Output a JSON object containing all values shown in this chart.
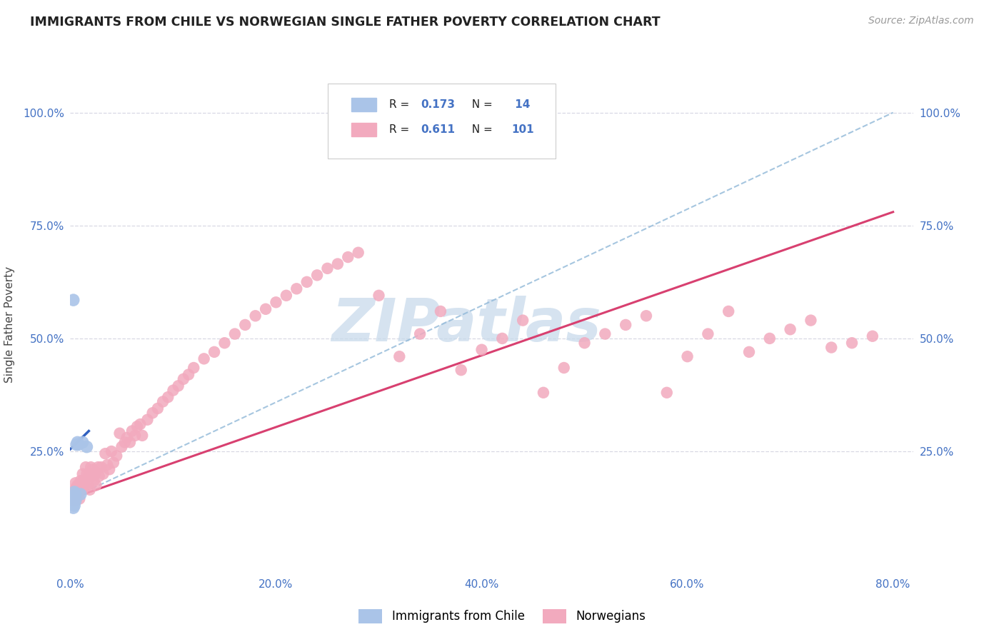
{
  "title": "IMMIGRANTS FROM CHILE VS NORWEGIAN SINGLE FATHER POVERTY CORRELATION CHART",
  "source": "Source: ZipAtlas.com",
  "ylabel": "Single Father Poverty",
  "xlim": [
    0.0,
    0.82
  ],
  "ylim": [
    -0.02,
    1.08
  ],
  "xtick_labels": [
    "0.0%",
    "20.0%",
    "40.0%",
    "60.0%",
    "80.0%"
  ],
  "xtick_vals": [
    0.0,
    0.2,
    0.4,
    0.6,
    0.8
  ],
  "ytick_labels": [
    "25.0%",
    "50.0%",
    "75.0%",
    "100.0%"
  ],
  "ytick_vals": [
    0.25,
    0.5,
    0.75,
    1.0
  ],
  "legend_labels": [
    "Immigrants from Chile",
    "Norwegians"
  ],
  "chile_color": "#aac4e8",
  "norway_color": "#f2aabe",
  "chile_trend_color": "#3060c0",
  "norway_trend_color": "#d84070",
  "norway_dashed_color": "#90b8d8",
  "chile_scatter": {
    "x": [
      0.003,
      0.003,
      0.003,
      0.004,
      0.004,
      0.004,
      0.005,
      0.005,
      0.006,
      0.007,
      0.008,
      0.01,
      0.012,
      0.016
    ],
    "y": [
      0.585,
      0.145,
      0.125,
      0.16,
      0.145,
      0.13,
      0.155,
      0.14,
      0.265,
      0.27,
      0.265,
      0.155,
      0.27,
      0.26
    ]
  },
  "norway_scatter": {
    "x": [
      0.003,
      0.004,
      0.004,
      0.005,
      0.005,
      0.006,
      0.006,
      0.007,
      0.007,
      0.008,
      0.009,
      0.009,
      0.01,
      0.01,
      0.011,
      0.012,
      0.012,
      0.013,
      0.014,
      0.015,
      0.016,
      0.017,
      0.018,
      0.019,
      0.02,
      0.021,
      0.022,
      0.023,
      0.024,
      0.025,
      0.027,
      0.028,
      0.03,
      0.032,
      0.034,
      0.036,
      0.038,
      0.04,
      0.042,
      0.045,
      0.048,
      0.05,
      0.053,
      0.055,
      0.058,
      0.06,
      0.063,
      0.065,
      0.068,
      0.07,
      0.075,
      0.08,
      0.085,
      0.09,
      0.095,
      0.1,
      0.105,
      0.11,
      0.115,
      0.12,
      0.13,
      0.14,
      0.15,
      0.16,
      0.17,
      0.18,
      0.19,
      0.2,
      0.21,
      0.22,
      0.23,
      0.24,
      0.25,
      0.26,
      0.27,
      0.28,
      0.3,
      0.32,
      0.34,
      0.36,
      0.38,
      0.4,
      0.42,
      0.44,
      0.46,
      0.48,
      0.5,
      0.52,
      0.54,
      0.56,
      0.58,
      0.6,
      0.62,
      0.64,
      0.66,
      0.68,
      0.7,
      0.72,
      0.74,
      0.76,
      0.78
    ],
    "y": [
      0.155,
      0.14,
      0.165,
      0.155,
      0.18,
      0.145,
      0.17,
      0.155,
      0.175,
      0.16,
      0.175,
      0.145,
      0.165,
      0.185,
      0.175,
      0.2,
      0.165,
      0.185,
      0.175,
      0.215,
      0.2,
      0.175,
      0.195,
      0.165,
      0.215,
      0.195,
      0.21,
      0.185,
      0.2,
      0.175,
      0.215,
      0.195,
      0.215,
      0.2,
      0.245,
      0.22,
      0.21,
      0.25,
      0.225,
      0.24,
      0.29,
      0.26,
      0.27,
      0.28,
      0.27,
      0.295,
      0.285,
      0.305,
      0.31,
      0.285,
      0.32,
      0.335,
      0.345,
      0.36,
      0.37,
      0.385,
      0.395,
      0.41,
      0.42,
      0.435,
      0.455,
      0.47,
      0.49,
      0.51,
      0.53,
      0.55,
      0.565,
      0.58,
      0.595,
      0.61,
      0.625,
      0.64,
      0.655,
      0.665,
      0.68,
      0.69,
      0.595,
      0.46,
      0.51,
      0.56,
      0.43,
      0.475,
      0.5,
      0.54,
      0.38,
      0.435,
      0.49,
      0.51,
      0.53,
      0.55,
      0.38,
      0.46,
      0.51,
      0.56,
      0.47,
      0.5,
      0.52,
      0.54,
      0.48,
      0.49,
      0.505
    ]
  },
  "chile_trend": {
    "x": [
      0.0,
      0.018
    ],
    "y": [
      0.255,
      0.295
    ]
  },
  "norway_trend": {
    "x": [
      0.0,
      0.8
    ],
    "y": [
      0.145,
      0.78
    ]
  },
  "norway_dashed_trend": {
    "x": [
      0.0,
      0.8
    ],
    "y": [
      0.145,
      1.0
    ]
  },
  "watermark": "ZIPatlas",
  "watermark_color": "#c5d8ea",
  "background_color": "#ffffff",
  "grid_color": "#d8d8e4"
}
